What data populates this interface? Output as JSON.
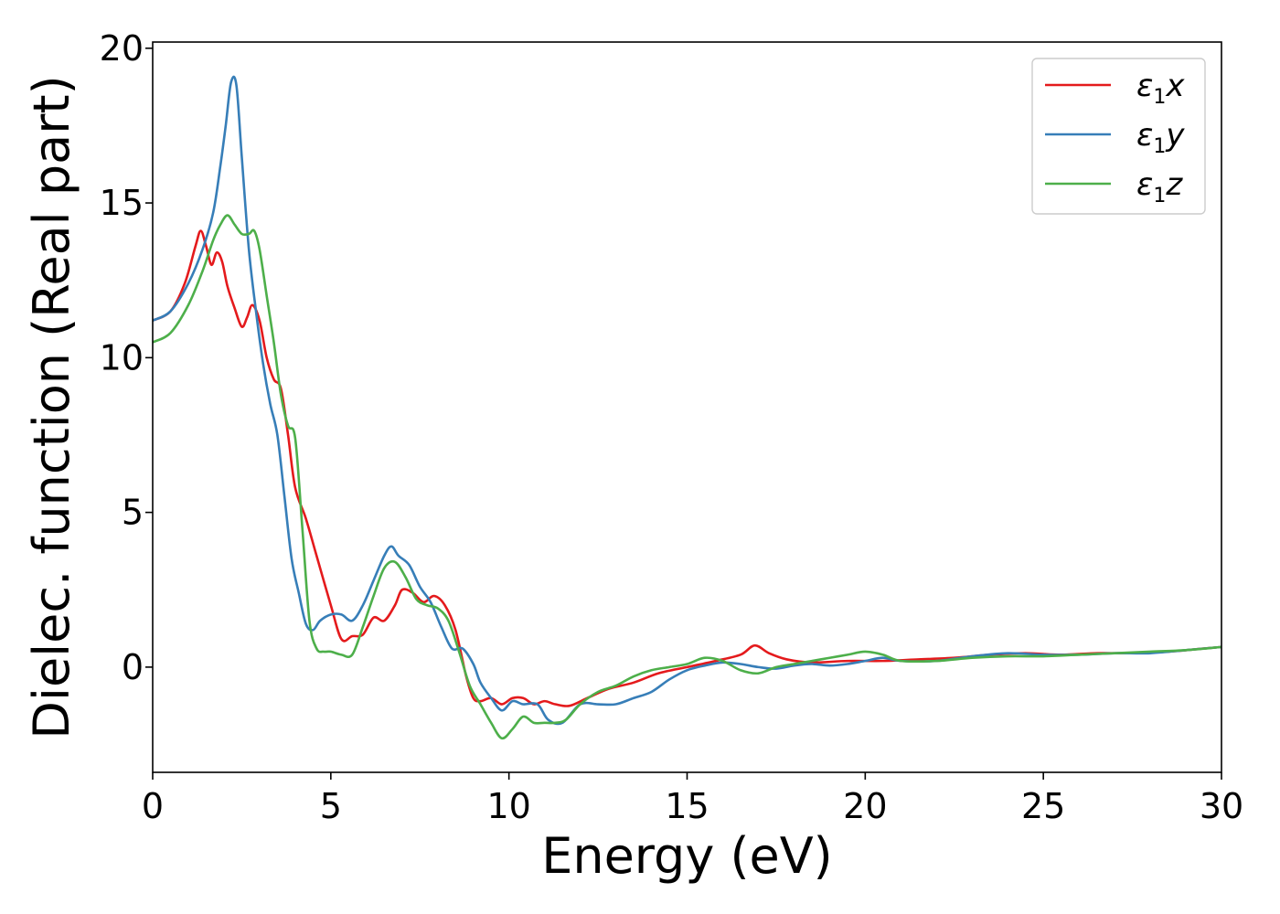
{
  "chart_data": {
    "type": "line",
    "title": "",
    "xlabel": "Energy (eV)",
    "ylabel": "Dielec. function (Real part)",
    "xlim": [
      0,
      30
    ],
    "ylim": [
      -3.4,
      20.2
    ],
    "xticks": [
      0,
      5,
      10,
      15,
      20,
      25,
      30
    ],
    "xtick_labels": [
      "0",
      "5",
      "10",
      "15",
      "20",
      "25",
      "30"
    ],
    "yticks": [
      0,
      5,
      10,
      15,
      20
    ],
    "ytick_labels": [
      "0",
      "5",
      "10",
      "15",
      "20"
    ],
    "grid": false,
    "legend_position": "top-right",
    "series": [
      {
        "name": "ε1x",
        "name_base": "ε",
        "name_sub": "1",
        "name_suffix": "x",
        "color": "#e41a1c",
        "x": [
          0,
          0.5,
          0.9,
          1.2,
          1.35,
          1.5,
          1.65,
          1.8,
          1.95,
          2.1,
          2.3,
          2.5,
          2.65,
          2.8,
          3.0,
          3.2,
          3.4,
          3.6,
          3.8,
          4.0,
          4.3,
          4.6,
          5.0,
          5.3,
          5.6,
          5.9,
          6.2,
          6.5,
          6.8,
          7.0,
          7.3,
          7.6,
          7.9,
          8.2,
          8.5,
          8.8,
          9.0,
          9.2,
          9.5,
          9.8,
          10.1,
          10.4,
          10.7,
          11.0,
          11.3,
          11.7,
          12.2,
          12.8,
          13.5,
          14.2,
          15.0,
          15.8,
          16.5,
          16.9,
          17.3,
          17.8,
          18.5,
          19.5,
          20.5,
          21.5,
          22.5,
          23.5,
          24.5,
          25.5,
          26.5,
          27.5,
          28.5,
          29.5,
          30.0
        ],
        "y": [
          11.2,
          11.5,
          12.4,
          13.6,
          14.1,
          13.6,
          13.0,
          13.4,
          13.1,
          12.3,
          11.6,
          11.0,
          11.3,
          11.7,
          11.2,
          10.0,
          9.3,
          9.0,
          7.5,
          5.8,
          4.8,
          3.6,
          2.0,
          0.9,
          1.0,
          1.05,
          1.6,
          1.5,
          2.0,
          2.5,
          2.4,
          2.1,
          2.3,
          2.0,
          1.2,
          -0.3,
          -1.0,
          -1.1,
          -1.0,
          -1.2,
          -1.0,
          -1.0,
          -1.2,
          -1.1,
          -1.2,
          -1.25,
          -1.0,
          -0.7,
          -0.5,
          -0.2,
          0.0,
          0.2,
          0.4,
          0.7,
          0.45,
          0.25,
          0.15,
          0.2,
          0.2,
          0.25,
          0.3,
          0.4,
          0.45,
          0.4,
          0.45,
          0.45,
          0.5,
          0.6,
          0.65
        ]
      },
      {
        "name": "ε1y",
        "name_base": "ε",
        "name_sub": "1",
        "name_suffix": "y",
        "color": "#377eb8",
        "x": [
          0,
          0.5,
          1.0,
          1.4,
          1.7,
          1.9,
          2.05,
          2.2,
          2.35,
          2.5,
          2.7,
          2.9,
          3.1,
          3.3,
          3.5,
          3.7,
          3.9,
          4.1,
          4.3,
          4.5,
          4.7,
          5.0,
          5.3,
          5.6,
          5.9,
          6.2,
          6.5,
          6.7,
          6.9,
          7.2,
          7.5,
          7.8,
          8.1,
          8.4,
          8.7,
          9.0,
          9.2,
          9.5,
          9.8,
          10.1,
          10.4,
          10.8,
          11.1,
          11.5,
          12.0,
          12.5,
          13.0,
          13.5,
          14.0,
          14.5,
          15.0,
          15.5,
          16.0,
          16.5,
          17.0,
          17.5,
          18.0,
          18.5,
          19.0,
          19.5,
          20.0,
          20.5,
          21.0,
          22.0,
          23.0,
          24.0,
          25.0,
          26.0,
          27.0,
          28.0,
          29.0,
          30.0
        ],
        "y": [
          11.2,
          11.5,
          12.4,
          13.5,
          14.7,
          16.2,
          17.5,
          18.9,
          18.8,
          16.5,
          13.5,
          11.5,
          9.8,
          8.5,
          7.5,
          5.5,
          3.5,
          2.4,
          1.4,
          1.2,
          1.5,
          1.7,
          1.7,
          1.5,
          2.0,
          2.8,
          3.6,
          3.9,
          3.6,
          3.3,
          2.6,
          2.1,
          1.3,
          0.6,
          0.6,
          0.1,
          -0.5,
          -1.0,
          -1.4,
          -1.1,
          -1.2,
          -1.2,
          -1.7,
          -1.8,
          -1.2,
          -1.2,
          -1.2,
          -1.0,
          -0.8,
          -0.4,
          -0.1,
          0.05,
          0.15,
          0.1,
          0.0,
          -0.05,
          0.05,
          0.1,
          0.05,
          0.1,
          0.2,
          0.3,
          0.2,
          0.2,
          0.35,
          0.45,
          0.4,
          0.4,
          0.45,
          0.45,
          0.55,
          0.65
        ]
      },
      {
        "name": "ε1z",
        "name_base": "ε",
        "name_sub": "1",
        "name_suffix": "z",
        "color": "#4daf4a",
        "x": [
          0,
          0.5,
          1.0,
          1.4,
          1.7,
          1.9,
          2.1,
          2.3,
          2.5,
          2.7,
          2.85,
          3.0,
          3.2,
          3.4,
          3.6,
          3.8,
          4.0,
          4.2,
          4.4,
          4.6,
          4.8,
          5.0,
          5.3,
          5.6,
          5.9,
          6.2,
          6.5,
          6.8,
          7.1,
          7.4,
          7.7,
          8.0,
          8.3,
          8.6,
          8.9,
          9.2,
          9.5,
          9.8,
          10.1,
          10.4,
          10.7,
          11.0,
          11.3,
          11.6,
          12.0,
          12.5,
          13.0,
          13.5,
          14.0,
          14.5,
          15.0,
          15.5,
          16.0,
          16.5,
          17.0,
          17.5,
          18.0,
          18.5,
          19.0,
          19.5,
          20.0,
          20.5,
          21.0,
          22.0,
          23.0,
          24.0,
          25.0,
          26.0,
          27.0,
          28.0,
          29.0,
          30.0
        ],
        "y": [
          10.5,
          10.8,
          11.7,
          12.8,
          13.8,
          14.3,
          14.6,
          14.3,
          14.0,
          14.0,
          14.1,
          13.5,
          12.0,
          10.5,
          8.8,
          7.8,
          7.4,
          4.5,
          1.5,
          0.6,
          0.5,
          0.5,
          0.4,
          0.4,
          1.3,
          2.3,
          3.2,
          3.4,
          2.9,
          2.2,
          2.0,
          1.9,
          1.5,
          0.5,
          -0.6,
          -1.2,
          -1.8,
          -2.3,
          -2.0,
          -1.6,
          -1.8,
          -1.8,
          -1.8,
          -1.7,
          -1.2,
          -0.8,
          -0.6,
          -0.3,
          -0.1,
          0.0,
          0.1,
          0.3,
          0.2,
          -0.1,
          -0.2,
          0.0,
          0.1,
          0.2,
          0.3,
          0.4,
          0.5,
          0.4,
          0.2,
          0.2,
          0.3,
          0.35,
          0.35,
          0.4,
          0.45,
          0.5,
          0.55,
          0.65
        ]
      }
    ]
  }
}
